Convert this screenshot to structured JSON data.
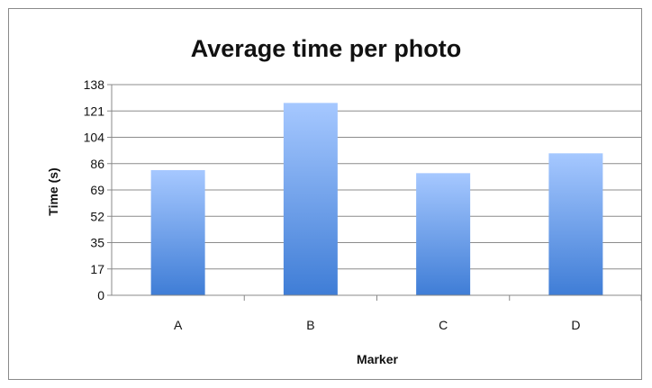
{
  "chart_data": {
    "type": "bar",
    "title": "Average time per photo",
    "xlabel": "Marker",
    "ylabel": "Time (s)",
    "categories": [
      "A",
      "B",
      "C",
      "D"
    ],
    "values": [
      82,
      126,
      80,
      93
    ],
    "yticks": [
      "0",
      "17",
      "35",
      "52",
      "69",
      "86",
      "104",
      "121",
      "138"
    ],
    "ylim": [
      0,
      138
    ],
    "grid": true,
    "legend": "none",
    "colors": {
      "bar_top": "#a6c8ff",
      "bar_bottom": "#3f7dd6",
      "grid": "#8c8c8c",
      "axis": "#888888"
    }
  }
}
